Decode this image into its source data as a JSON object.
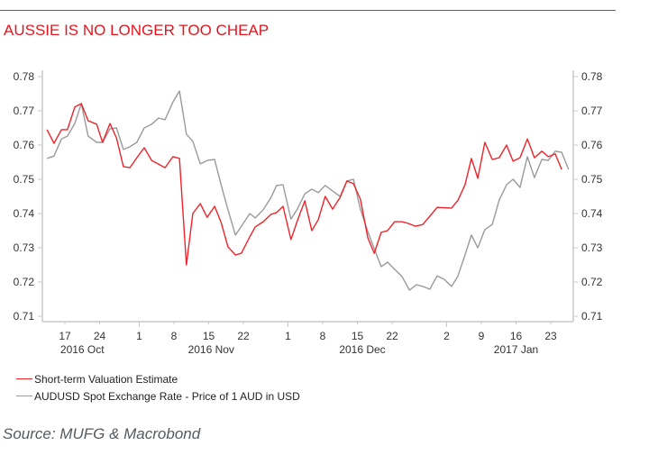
{
  "header": {
    "title": "AUSSIE IS NO LONGER TOO CHEAP"
  },
  "source": "Source: MUFG & Macrobond",
  "colors": {
    "accent": "#e8141c",
    "series_red": "#f0232a",
    "series_gray": "#9a9a9a",
    "axis": "#c8c8c8"
  },
  "chart_data": {
    "type": "line",
    "title": "AUSSIE IS NO LONGER TOO CHEAP",
    "xlabel": "",
    "ylabel": "",
    "x_unit": "days since 2016-10-17",
    "ylim": [
      0.71,
      0.78
    ],
    "xlim": [
      -3.6,
      101.5
    ],
    "y_ticks": [
      "0.71",
      "0.72",
      "0.73",
      "0.74",
      "0.75",
      "0.76",
      "0.77",
      "0.78"
    ],
    "y_tick_values": [
      0.71,
      0.72,
      0.73,
      0.74,
      0.75,
      0.76,
      0.77,
      0.78
    ],
    "y_axes": [
      "left",
      "right"
    ],
    "grid": false,
    "x_ticks": [
      {
        "label": "17",
        "day": 0
      },
      {
        "label": "24",
        "day": 7
      },
      {
        "label": "1",
        "day": 15,
        "major": true
      },
      {
        "label": "8",
        "day": 22
      },
      {
        "label": "15",
        "day": 29
      },
      {
        "label": "22",
        "day": 36
      },
      {
        "label": "1",
        "day": 45,
        "major": true
      },
      {
        "label": "8",
        "day": 52
      },
      {
        "label": "15",
        "day": 59
      },
      {
        "label": "22",
        "day": 66
      },
      {
        "label": "2",
        "day": 77,
        "major": true
      },
      {
        "label": "9",
        "day": 84
      },
      {
        "label": "16",
        "day": 91
      },
      {
        "label": "23",
        "day": 98
      }
    ],
    "x_groups": [
      {
        "label": "2016 Oct",
        "day": 3.5
      },
      {
        "label": "2016 Nov",
        "day": 29.5
      },
      {
        "label": "2016 Dec",
        "day": 60
      },
      {
        "label": "2017 Jan",
        "day": 91
      }
    ],
    "legend_position": "bottom-left",
    "series": [
      {
        "name": "Short-term Valuation Estimate",
        "color": "#f0232a",
        "x": [
          -3.6,
          -2.2,
          -0.7,
          0.5,
          2.0,
          3.3,
          4.7,
          6.4,
          7.6,
          9.1,
          10.4,
          11.8,
          13.1,
          14.5,
          16.0,
          17.5,
          20.2,
          21.8,
          23.1,
          24.5,
          25.8,
          27.3,
          28.7,
          30.2,
          31.5,
          32.9,
          34.4,
          35.6,
          37.3,
          38.4,
          40.0,
          41.5,
          42.7,
          44.0,
          45.6,
          46.9,
          48.4,
          49.8,
          51.1,
          52.5,
          54.0,
          55.5,
          56.9,
          58.2,
          59.6,
          61.1,
          62.4,
          63.8,
          65.1,
          66.5,
          68.0,
          69.3,
          70.7,
          72.2,
          73.6,
          75.1,
          78.0,
          79.3,
          80.7,
          82.0,
          83.3,
          84.7,
          86.2,
          87.6,
          89.1,
          90.4,
          91.8,
          93.3,
          94.7,
          96.2,
          97.5,
          98.9,
          100.2
        ],
        "values": [
          0.7645,
          0.7605,
          0.7645,
          0.7645,
          0.7711,
          0.7721,
          0.7671,
          0.7661,
          0.7608,
          0.7663,
          0.7621,
          0.7537,
          0.7534,
          0.7563,
          0.7592,
          0.7555,
          0.7534,
          0.7566,
          0.7561,
          0.725,
          0.74,
          0.7429,
          0.7389,
          0.7421,
          0.7374,
          0.7303,
          0.7279,
          0.7284,
          0.7332,
          0.7361,
          0.7376,
          0.7397,
          0.7403,
          0.7421,
          0.7324,
          0.7379,
          0.7437,
          0.735,
          0.7382,
          0.745,
          0.7413,
          0.7447,
          0.7495,
          0.7487,
          0.7442,
          0.7329,
          0.7284,
          0.7345,
          0.735,
          0.7376,
          0.7376,
          0.7371,
          0.7363,
          0.7368,
          0.7392,
          0.7418,
          0.7416,
          0.7439,
          0.7484,
          0.7561,
          0.7503,
          0.7608,
          0.7558,
          0.7563,
          0.76,
          0.7553,
          0.7563,
          0.7618,
          0.7563,
          0.7582,
          0.7566,
          0.7574,
          0.7529
        ]
      },
      {
        "name": "AUDUSD Spot Exchange Rate - Price of 1 AUD in USD",
        "color": "#9a9a9a",
        "x": [
          -3.6,
          -2.2,
          -0.7,
          0.5,
          2.0,
          3.3,
          4.7,
          6.4,
          7.6,
          9.1,
          10.4,
          11.8,
          13.1,
          14.5,
          16.0,
          17.5,
          18.9,
          20.2,
          21.8,
          23.1,
          24.5,
          25.8,
          27.3,
          28.7,
          30.2,
          31.5,
          32.9,
          34.4,
          35.6,
          37.3,
          38.4,
          40.0,
          41.5,
          42.7,
          44.0,
          45.6,
          46.9,
          48.4,
          49.8,
          51.1,
          52.5,
          54.0,
          55.5,
          56.9,
          58.2,
          59.6,
          61.1,
          62.4,
          63.8,
          65.1,
          66.5,
          68.0,
          69.5,
          70.9,
          72.2,
          73.6,
          75.1,
          76.5,
          78.0,
          79.3,
          80.7,
          82.0,
          83.3,
          84.7,
          86.2,
          87.6,
          89.1,
          90.4,
          91.8,
          93.3,
          94.7,
          96.2,
          97.5,
          98.9,
          100.2,
          101.6
        ],
        "values": [
          0.7561,
          0.7568,
          0.7618,
          0.7626,
          0.7663,
          0.7721,
          0.7626,
          0.7608,
          0.7608,
          0.7647,
          0.765,
          0.7587,
          0.7595,
          0.7608,
          0.765,
          0.7661,
          0.7679,
          0.7674,
          0.7726,
          0.7758,
          0.7632,
          0.7611,
          0.7545,
          0.7555,
          0.7558,
          0.7484,
          0.7411,
          0.7337,
          0.7363,
          0.74,
          0.7387,
          0.7411,
          0.7445,
          0.7482,
          0.7484,
          0.7384,
          0.7413,
          0.7458,
          0.7471,
          0.7461,
          0.7482,
          0.7466,
          0.745,
          0.7495,
          0.75,
          0.7413,
          0.7347,
          0.7297,
          0.7245,
          0.7258,
          0.7237,
          0.7216,
          0.7176,
          0.7192,
          0.7187,
          0.7179,
          0.7218,
          0.7208,
          0.7187,
          0.7218,
          0.7279,
          0.7337,
          0.73,
          0.7353,
          0.7368,
          0.7439,
          0.7484,
          0.75,
          0.7476,
          0.7566,
          0.7505,
          0.7558,
          0.7555,
          0.7582,
          0.7579,
          0.7529
        ]
      }
    ]
  }
}
